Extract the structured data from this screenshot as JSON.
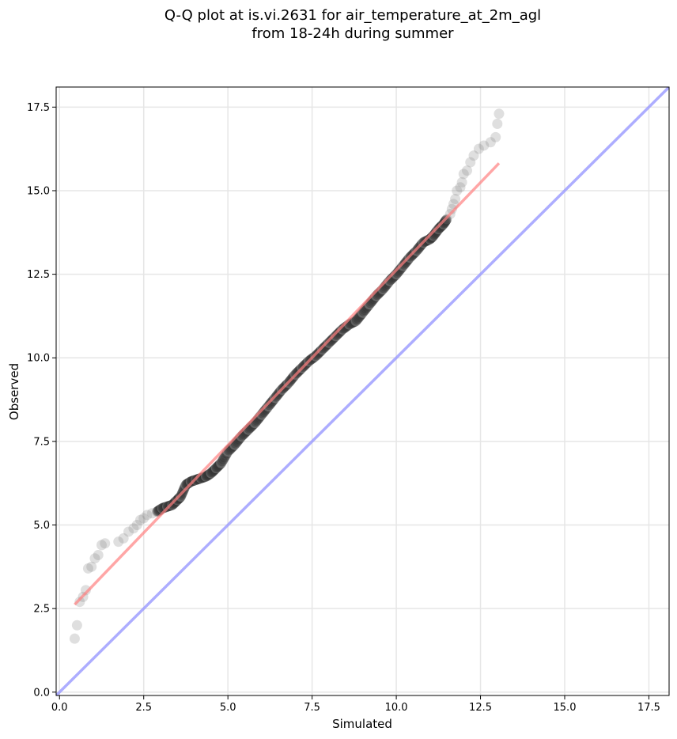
{
  "chart_data": {
    "type": "scatter",
    "title": [
      "Q-Q plot at is.vi.2631 for air_temperature_at_2m_agl",
      "from 18-24h during summer"
    ],
    "xlabel": "Simulated",
    "ylabel": "Observed",
    "xlim": [
      -0.1,
      18.1
    ],
    "ylim": [
      -0.1,
      18.1
    ],
    "xticks": [
      "0.0",
      "2.5",
      "5.0",
      "7.5",
      "10.0",
      "12.5",
      "15.0",
      "17.5"
    ],
    "yticks": [
      "0.0",
      "2.5",
      "5.0",
      "7.5",
      "10.0",
      "12.5",
      "15.0",
      "17.5"
    ],
    "grid": true,
    "series": [
      {
        "kind": "points",
        "color": "#808080",
        "x": [
          0.45,
          0.52,
          0.6,
          0.7,
          0.78,
          0.85,
          0.95,
          1.05,
          1.15,
          1.25,
          1.35,
          1.75,
          1.9,
          2.05,
          2.2,
          2.3,
          2.4,
          2.5,
          2.6,
          2.75,
          2.9,
          3.05,
          3.2,
          3.35,
          3.5,
          3.6,
          3.75,
          3.9,
          4.05,
          4.2,
          4.35,
          4.5,
          4.65,
          4.8,
          5.0,
          5.2,
          5.4,
          5.6,
          5.8,
          6.0,
          6.2,
          6.4,
          6.6,
          6.8,
          7.0,
          7.2,
          7.4,
          7.6,
          7.8,
          8.0,
          8.2,
          8.4,
          8.6,
          8.8,
          9.0,
          9.2,
          9.4,
          9.6,
          9.8,
          10.0,
          10.2,
          10.4,
          10.6,
          10.8,
          11.0,
          11.1,
          11.25,
          11.4,
          11.5,
          11.6,
          11.65,
          11.7,
          11.75,
          11.8,
          11.9,
          11.95,
          12.0,
          12.1,
          12.2,
          12.3,
          12.45,
          12.6,
          12.8,
          12.95,
          13.0,
          13.05
        ],
        "y": [
          1.6,
          2.0,
          2.7,
          2.85,
          3.05,
          3.7,
          3.75,
          4.0,
          4.1,
          4.4,
          4.45,
          4.5,
          4.6,
          4.8,
          4.9,
          5.0,
          5.15,
          5.2,
          5.3,
          5.35,
          5.4,
          5.5,
          5.55,
          5.6,
          5.75,
          5.85,
          6.2,
          6.3,
          6.35,
          6.4,
          6.45,
          6.55,
          6.7,
          6.85,
          7.2,
          7.4,
          7.65,
          7.85,
          8.05,
          8.3,
          8.55,
          8.8,
          9.05,
          9.25,
          9.5,
          9.7,
          9.9,
          10.05,
          10.25,
          10.45,
          10.65,
          10.85,
          11.0,
          11.1,
          11.35,
          11.6,
          11.85,
          12.05,
          12.3,
          12.5,
          12.75,
          13.0,
          13.2,
          13.45,
          13.55,
          13.65,
          13.85,
          14.0,
          14.15,
          14.3,
          14.45,
          14.6,
          14.75,
          15.0,
          15.1,
          15.25,
          15.5,
          15.6,
          15.85,
          16.05,
          16.25,
          16.35,
          16.45,
          16.6,
          17.0,
          17.3
        ]
      },
      {
        "kind": "fit-line",
        "color": "#ff8080",
        "x": [
          0.45,
          13.05
        ],
        "y": [
          2.62,
          15.82
        ]
      },
      {
        "kind": "identity-line",
        "color": "#9999ff",
        "x": [
          -0.1,
          18.1
        ],
        "y": [
          -0.1,
          18.1
        ]
      }
    ]
  }
}
